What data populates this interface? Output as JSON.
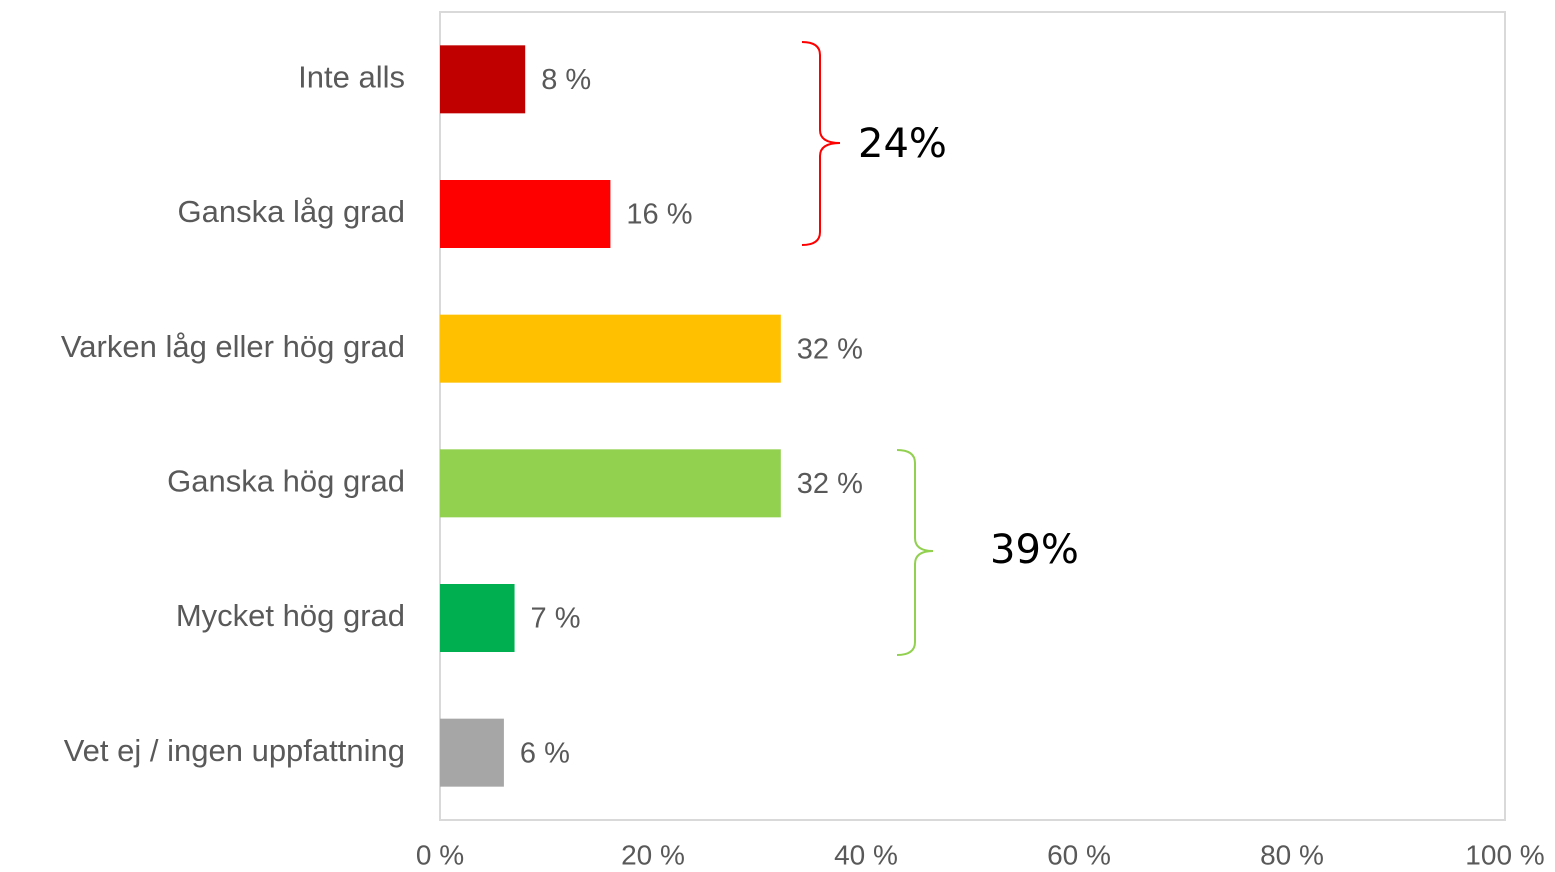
{
  "chart_data": {
    "type": "bar",
    "orientation": "horizontal",
    "categories": [
      "Inte alls",
      "Ganska låg grad",
      "Varken låg eller hög grad",
      "Ganska hög grad",
      "Mycket hög grad",
      "Vet ej / ingen uppfattning"
    ],
    "values": [
      8,
      16,
      32,
      32,
      7,
      6
    ],
    "value_labels": [
      "8 %",
      "16 %",
      "32 %",
      "32 %",
      "7 %",
      "6 %"
    ],
    "colors": [
      "#c00000",
      "#ff0000",
      "#ffc000",
      "#92d050",
      "#00b050",
      "#a6a6a6"
    ],
    "xlim": [
      0,
      100
    ],
    "xticks": [
      {
        "value": 0,
        "label": "0 %"
      },
      {
        "value": 20,
        "label": "20 %"
      },
      {
        "value": 40,
        "label": "40 %"
      },
      {
        "value": 60,
        "label": "60 %"
      },
      {
        "value": 80,
        "label": "80 %"
      },
      {
        "value": 100,
        "label": "100 %"
      }
    ],
    "grid": false,
    "annotations": [
      {
        "text": "24%",
        "color": "#ff0000"
      },
      {
        "text": "39%",
        "color": "#92d050"
      }
    ]
  }
}
